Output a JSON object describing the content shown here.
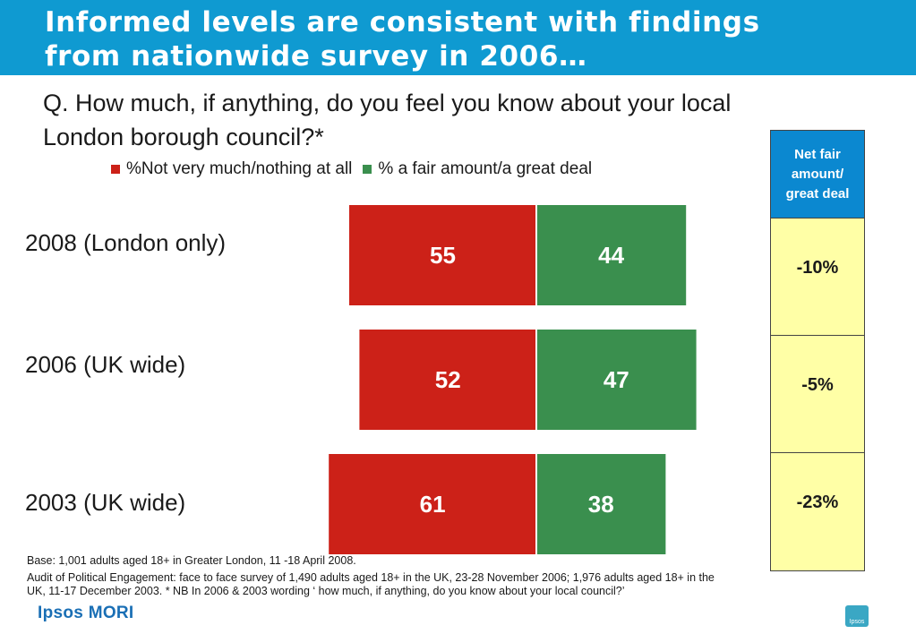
{
  "title_line1": "Informed levels are consistent with findings",
  "title_line2": "from nationwide survey in 2006…",
  "question_line1": "Q. How much, if anything, do you feel you know about your local",
  "question_line2": "London borough council?*",
  "net_table": {
    "header": "Net fair amount/ great deal",
    "values": [
      "-10%",
      "-5%",
      "-23%"
    ]
  },
  "footnotes": {
    "base": "Base: 1,001 adults aged 18+ in Greater London, 11 -18 April 2008.",
    "audit_line1": "Audit of Political Engagement: face to face survey of  1,490 adults aged 18+ in the UK, 23-28 November 2006; 1,976 adults aged 18+ in the",
    "audit_line2": "UK, 11-17 December 2003. * NB In 2006 & 2003 wording ‘ how much, if anything, do you know about your local council?’"
  },
  "logo": "Ipsos MORI",
  "badge": "Ipsos",
  "colors": {
    "red": "#cc2118",
    "green": "#3a8f4e",
    "title_bg": "#0f9ad1",
    "net_header": "#0b88d0",
    "net_cell": "#ffffa6"
  },
  "chart_data": {
    "type": "bar",
    "orientation": "horizontal-diverging",
    "categories": [
      "2008 (London only)",
      "2006 (UK wide)",
      "2003 (UK wide)"
    ],
    "series": [
      {
        "name": "%Not very much/nothing at all",
        "values": [
          55,
          52,
          61
        ]
      },
      {
        "name": "% a fair amount/a great deal",
        "values": [
          44,
          47,
          38
        ]
      }
    ],
    "legend": "top"
  }
}
